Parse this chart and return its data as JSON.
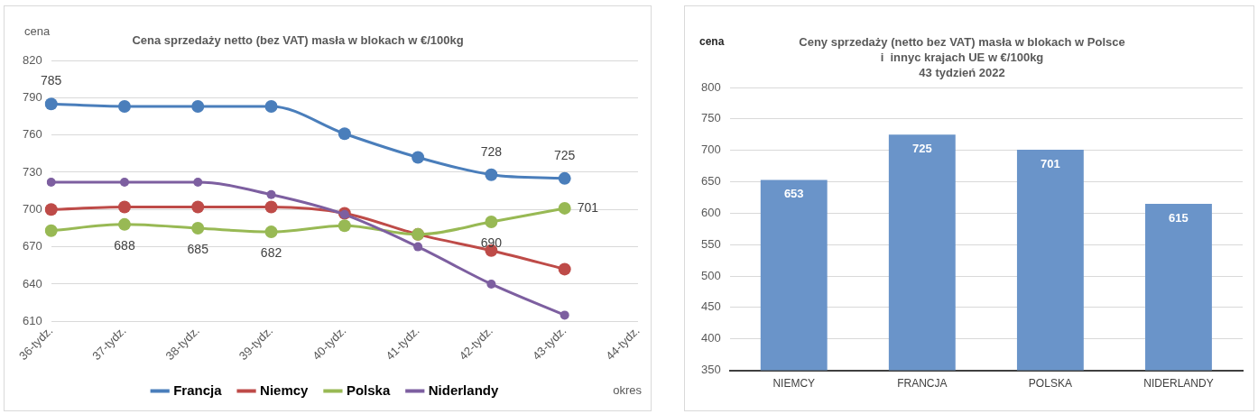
{
  "chart_data": [
    {
      "type": "line",
      "title": "Cena sprzedaży netto (bez VAT) masła w blokach w €/100kg",
      "ylabel": "cena",
      "xlabel": "okres",
      "categories": [
        "36-tydz.",
        "37-tydz.",
        "38-tydz.",
        "39-tydz.",
        "40-tydz.",
        "41-tydz.",
        "42-tydz.",
        "43-tydz.",
        "44-tydz."
      ],
      "series": [
        {
          "name": "Francja",
          "color": "#4a7ebb",
          "values": [
            785,
            783,
            783,
            783,
            761,
            742,
            728,
            725,
            null
          ],
          "value_labels": [
            "785",
            null,
            null,
            null,
            null,
            null,
            "728",
            "725",
            null
          ]
        },
        {
          "name": "Niemcy",
          "color": "#be4b48",
          "values": [
            700,
            702,
            702,
            702,
            697,
            680,
            667,
            652,
            null
          ]
        },
        {
          "name": "Polska",
          "color": "#98b954",
          "values": [
            683,
            688,
            685,
            682,
            687,
            680,
            690,
            701,
            null
          ],
          "value_labels": [
            null,
            "688",
            "685",
            "682",
            null,
            null,
            "690",
            "701",
            null
          ]
        },
        {
          "name": "Niderlandy",
          "color": "#7d5fa0",
          "values": [
            722,
            722,
            722,
            712,
            696,
            670,
            640,
            615,
            null
          ]
        }
      ],
      "ylim": [
        610,
        820
      ],
      "yticks": [
        610,
        640,
        670,
        700,
        730,
        760,
        790,
        820
      ],
      "grid": "y",
      "legend": "bottom",
      "marker": "circle",
      "line_style": "solid"
    },
    {
      "type": "bar",
      "title": "Ceny sprzedaży (netto bez VAT) masła w blokach w Polsce\ni  innyc krajach UE w €/100kg\n43 tydzień 2022",
      "ylabel": "cena",
      "categories": [
        "NIEMCY",
        "FRANCJA",
        "POLSKA",
        "NIDERLANDY"
      ],
      "values": [
        653,
        725,
        701,
        615
      ],
      "color": "#6a94c9",
      "ylim": [
        350,
        800
      ],
      "yticks": [
        350,
        400,
        450,
        500,
        550,
        600,
        650,
        700,
        750,
        800
      ],
      "grid": "y",
      "data_labels": true
    }
  ]
}
